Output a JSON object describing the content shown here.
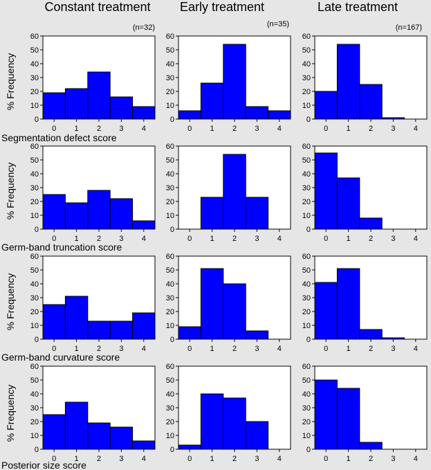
{
  "column_titles": [
    "Constant treatment",
    "Early treatment",
    "Late treatment"
  ],
  "n_labels": [
    "(n=32)",
    "(n=35)",
    "(n=167)"
  ],
  "ylabel": "% Frequency",
  "row_labels": [
    "Segmentation defect score",
    "Germ-band truncation score",
    "Germ-band curvature score",
    "Posterior size score"
  ],
  "colors": {
    "bar_fill": "#0000ff",
    "bar_stroke": "#000000",
    "background": "#e6e6e6",
    "plot_bg": "#ffffff"
  },
  "chart_data": {
    "type": "bar",
    "layout": "grid 4 rows x 3 columns of histograms",
    "categories": [
      "0",
      "1",
      "2",
      "3",
      "4"
    ],
    "ylim": [
      0,
      60
    ],
    "yticks": [
      "0",
      "10",
      "20",
      "30",
      "40",
      "50",
      "60"
    ],
    "xticks": [
      "0",
      "1",
      "2",
      "3",
      "4"
    ],
    "panels": [
      {
        "row": "Segmentation defect score",
        "column": "Constant treatment",
        "values": [
          19,
          22,
          34,
          16,
          9
        ]
      },
      {
        "row": "Segmentation defect score",
        "column": "Early treatment",
        "values": [
          6,
          26,
          54,
          9,
          6
        ]
      },
      {
        "row": "Segmentation defect score",
        "column": "Late treatment",
        "values": [
          20,
          54,
          25,
          1,
          0
        ]
      },
      {
        "row": "Germ-band truncation score",
        "column": "Constant treatment",
        "values": [
          25,
          19,
          28,
          22,
          6
        ]
      },
      {
        "row": "Germ-band truncation score",
        "column": "Early treatment",
        "values": [
          0,
          23,
          54,
          23,
          0
        ]
      },
      {
        "row": "Germ-band truncation score",
        "column": "Late treatment",
        "values": [
          55,
          37,
          8,
          0,
          0
        ]
      },
      {
        "row": "Germ-band curvature score",
        "column": "Constant treatment",
        "values": [
          25,
          31,
          13,
          13,
          19
        ]
      },
      {
        "row": "Germ-band curvature score",
        "column": "Early treatment",
        "values": [
          9,
          51,
          40,
          6,
          0
        ]
      },
      {
        "row": "Germ-band curvature score",
        "column": "Late treatment",
        "values": [
          41,
          51,
          7,
          1,
          0
        ]
      },
      {
        "row": "Posterior size score",
        "column": "Constant treatment",
        "values": [
          25,
          34,
          19,
          16,
          6
        ]
      },
      {
        "row": "Posterior size score",
        "column": "Early treatment",
        "values": [
          3,
          40,
          37,
          20,
          0
        ]
      },
      {
        "row": "Posterior size score",
        "column": "Late treatment",
        "values": [
          50,
          44,
          5,
          0,
          0
        ]
      }
    ]
  }
}
